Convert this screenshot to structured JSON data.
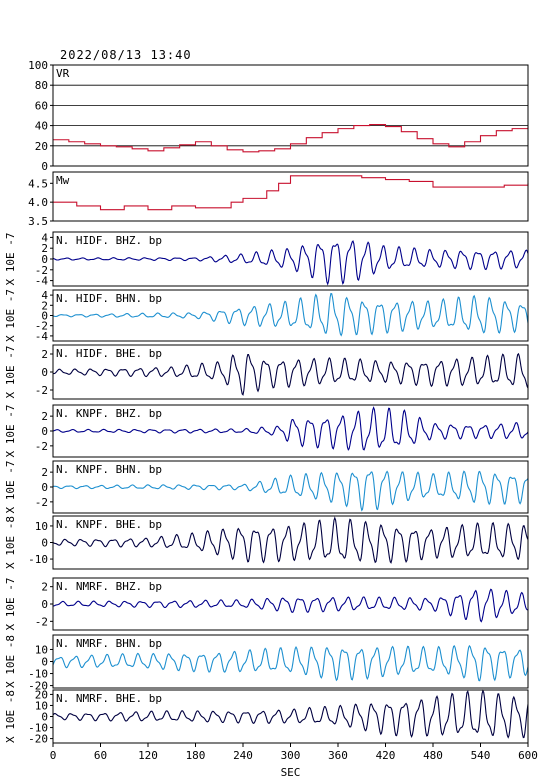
{
  "title": "2022/08/13 13:40",
  "xlabel": "SEC",
  "xticks": [
    "0",
    "60",
    "120",
    "180",
    "240",
    "300",
    "360",
    "420",
    "480",
    "540",
    "600"
  ],
  "chart_data": [
    {
      "type": "line",
      "name": "VR",
      "label": "VR",
      "ylim": [
        0,
        100
      ],
      "yticks": [
        "0",
        "20",
        "40",
        "60",
        "80",
        "100"
      ],
      "grid": true,
      "color": "#c8102e",
      "x": [
        0,
        20,
        40,
        60,
        80,
        100,
        120,
        140,
        160,
        180,
        200,
        220,
        240,
        260,
        280,
        300,
        320,
        340,
        360,
        380,
        400,
        420,
        440,
        460,
        480,
        500,
        520,
        540,
        560,
        580,
        600
      ],
      "values": [
        26,
        24,
        22,
        20,
        19,
        17,
        15,
        18,
        21,
        24,
        20,
        16,
        14,
        15,
        17,
        22,
        28,
        33,
        37,
        40,
        41,
        39,
        34,
        27,
        22,
        19,
        24,
        30,
        35,
        37,
        39
      ]
    },
    {
      "type": "line",
      "name": "Mw",
      "label": "Mw",
      "ylim": [
        3.5,
        4.8
      ],
      "yticks": [
        "3.5",
        "4.0",
        "4.5"
      ],
      "grid": false,
      "color": "#c8102e",
      "x": [
        0,
        30,
        60,
        90,
        120,
        150,
        180,
        210,
        225,
        240,
        270,
        285,
        300,
        330,
        360,
        390,
        420,
        450,
        480,
        510,
        540,
        570,
        600
      ],
      "values": [
        4.0,
        3.9,
        3.8,
        3.9,
        3.8,
        3.9,
        3.85,
        3.85,
        4.0,
        4.1,
        4.3,
        4.5,
        4.7,
        4.7,
        4.7,
        4.65,
        4.6,
        4.55,
        4.4,
        4.4,
        4.4,
        4.45,
        4.5
      ]
    },
    {
      "type": "line",
      "name": "N.HIDF.BHZ.bp",
      "label": "N. HIDF. BHZ. bp",
      "ylabel": "X 10E -7",
      "ylim": [
        -5,
        5
      ],
      "yticks": [
        "-4",
        "-2",
        "0",
        "2",
        "4"
      ],
      "color": "#00008b",
      "env": [
        [
          0,
          0.2
        ],
        [
          180,
          0.3
        ],
        [
          240,
          1.0
        ],
        [
          300,
          2.2
        ],
        [
          350,
          4.8
        ],
        [
          380,
          4.5
        ],
        [
          420,
          2.5
        ],
        [
          480,
          1.8
        ],
        [
          540,
          2.0
        ],
        [
          600,
          1.8
        ]
      ]
    },
    {
      "type": "line",
      "name": "N.HIDF.BHN.bp",
      "label": "N. HIDF. BHN. bp",
      "ylabel": "X 10E -7",
      "ylim": [
        -5,
        5
      ],
      "yticks": [
        "-4",
        "-2",
        "0",
        "2",
        "4"
      ],
      "color": "#1e90d0",
      "env": [
        [
          0,
          0.2
        ],
        [
          180,
          0.6
        ],
        [
          240,
          2.0
        ],
        [
          300,
          3.0
        ],
        [
          350,
          4.8
        ],
        [
          380,
          4.0
        ],
        [
          420,
          3.5
        ],
        [
          480,
          3.0
        ],
        [
          540,
          4.2
        ],
        [
          600,
          3.0
        ]
      ]
    },
    {
      "type": "line",
      "name": "N.HIDF.BHE.bp",
      "label": "N. HIDF. BHE. bp",
      "ylabel": "X 10E -7",
      "ylim": [
        -3,
        3
      ],
      "yticks": [
        "-2",
        "0",
        "2"
      ],
      "color": "#000040",
      "env": [
        [
          0,
          0.3
        ],
        [
          150,
          0.6
        ],
        [
          210,
          1.2
        ],
        [
          240,
          2.8
        ],
        [
          270,
          1.8
        ],
        [
          360,
          1.6
        ],
        [
          420,
          1.3
        ],
        [
          480,
          1.6
        ],
        [
          540,
          1.8
        ],
        [
          600,
          2.2
        ]
      ]
    },
    {
      "type": "line",
      "name": "N.KNPF.BHZ.bp",
      "label": "N. KNPF. BHZ. bp",
      "ylabel": "X 10E -7",
      "ylim": [
        -3.5,
        3.5
      ],
      "yticks": [
        "-2",
        "0",
        "2"
      ],
      "color": "#00008b",
      "env": [
        [
          0,
          0.2
        ],
        [
          240,
          0.3
        ],
        [
          290,
          0.8
        ],
        [
          300,
          2.0
        ],
        [
          360,
          2.5
        ],
        [
          400,
          3.3
        ],
        [
          440,
          3.0
        ],
        [
          480,
          1.2
        ],
        [
          540,
          1.0
        ],
        [
          600,
          1.3
        ]
      ]
    },
    {
      "type": "line",
      "name": "N.KNPF.BHN.bp",
      "label": "N. KNPF. BHN. bp",
      "ylabel": "X 10E -7",
      "ylim": [
        -3.5,
        3.5
      ],
      "yticks": [
        "-2",
        "0",
        "2"
      ],
      "color": "#1e90d0",
      "env": [
        [
          0,
          0.2
        ],
        [
          240,
          0.4
        ],
        [
          300,
          1.6
        ],
        [
          360,
          2.4
        ],
        [
          400,
          3.4
        ],
        [
          430,
          2.5
        ],
        [
          480,
          1.8
        ],
        [
          540,
          2.5
        ],
        [
          600,
          2.2
        ]
      ]
    },
    {
      "type": "line",
      "name": "N.KNPF.BHE.bp",
      "label": "N. KNPF. BHE. bp",
      "ylabel": "X 10E -8",
      "ylim": [
        -16,
        16
      ],
      "yticks": [
        "-10",
        "0",
        "10"
      ],
      "color": "#000040",
      "env": [
        [
          0,
          2
        ],
        [
          120,
          3
        ],
        [
          180,
          6
        ],
        [
          240,
          12
        ],
        [
          300,
          12
        ],
        [
          360,
          15
        ],
        [
          420,
          13
        ],
        [
          480,
          10
        ],
        [
          540,
          12
        ],
        [
          600,
          12
        ]
      ]
    },
    {
      "type": "line",
      "name": "N.NMRF.BHZ.bp",
      "label": "N. NMRF. BHZ. bp",
      "ylabel": "X 10E -7",
      "ylim": [
        -3,
        3
      ],
      "yticks": [
        "-2",
        "0",
        "2"
      ],
      "color": "#00008b",
      "env": [
        [
          0,
          0.3
        ],
        [
          240,
          0.5
        ],
        [
          300,
          1.0
        ],
        [
          360,
          0.9
        ],
        [
          420,
          0.8
        ],
        [
          480,
          0.8
        ],
        [
          520,
          1.8
        ],
        [
          540,
          2.2
        ],
        [
          600,
          1.2
        ]
      ]
    },
    {
      "type": "line",
      "name": "N.NMRF.BHN.bp",
      "label": "N. NMRF. BHN. bp",
      "ylabel": "X 10E -8",
      "ylim": [
        -22,
        22
      ],
      "yticks": [
        "-20",
        "-10",
        "0",
        "10"
      ],
      "color": "#1e90d0",
      "env": [
        [
          0,
          5
        ],
        [
          120,
          7
        ],
        [
          240,
          10
        ],
        [
          300,
          12
        ],
        [
          360,
          16
        ],
        [
          420,
          14
        ],
        [
          480,
          12
        ],
        [
          540,
          17
        ],
        [
          600,
          12
        ]
      ]
    },
    {
      "type": "line",
      "name": "N.NMRF.BHE.bp",
      "label": "N. NMRF. BHE. bp",
      "ylabel": "X 10E -8",
      "ylim": [
        -24,
        24
      ],
      "yticks": [
        "-20",
        "-10",
        "0",
        "10",
        "20"
      ],
      "color": "#000040",
      "env": [
        [
          0,
          3
        ],
        [
          120,
          5
        ],
        [
          240,
          6
        ],
        [
          300,
          7
        ],
        [
          360,
          10
        ],
        [
          420,
          17
        ],
        [
          480,
          20
        ],
        [
          540,
          24
        ],
        [
          600,
          20
        ]
      ]
    }
  ]
}
